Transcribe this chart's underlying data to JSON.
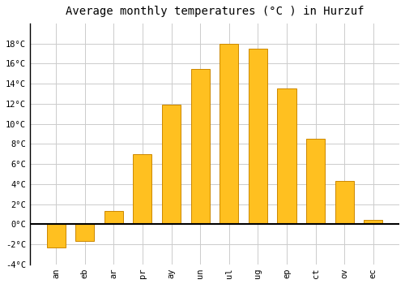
{
  "months": [
    "an",
    "eb",
    "ar",
    "pr",
    "ay",
    "un",
    "ul",
    "ug",
    "ep",
    "ct",
    "ov",
    "ec"
  ],
  "temperatures": [
    -2.3,
    -1.7,
    1.3,
    7.0,
    11.9,
    15.5,
    18.0,
    17.5,
    13.5,
    8.5,
    4.3,
    0.4
  ],
  "bar_color": "#FFC020",
  "bar_edge_color": "#CC8800",
  "title": "Average monthly temperatures (°C ) in Hurzuf",
  "ylim": [
    -4,
    20
  ],
  "yticks": [
    -4,
    -2,
    0,
    2,
    4,
    6,
    8,
    10,
    12,
    14,
    16,
    18
  ],
  "background_color": "#ffffff",
  "grid_color": "#cccccc",
  "title_fontsize": 10,
  "tick_fontsize": 7.5,
  "font_family": "monospace"
}
